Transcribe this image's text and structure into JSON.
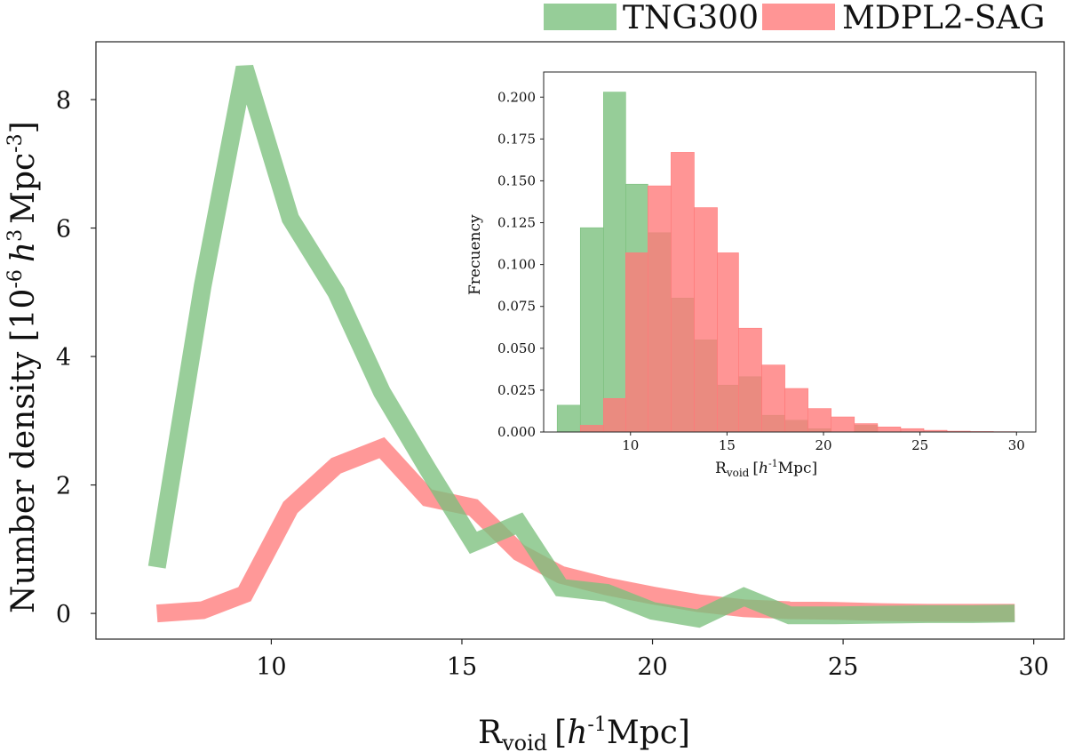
{
  "chart_data": {
    "main": {
      "type": "line",
      "xlabel": "R",
      "xlabel_sub": "void",
      "xlabel_unit_pre": "[",
      "xlabel_unit_h": "h",
      "xlabel_unit_exp": "-1",
      "xlabel_unit_post": "Mpc]",
      "ylabel_pre": "Number density [10",
      "ylabel_exp1": "-6",
      "ylabel_h": "h",
      "ylabel_exp2": "3",
      "ylabel_mid": "Mpc",
      "ylabel_exp3": "-3",
      "ylabel_post": "]",
      "xlim": [
        5.4,
        30.8
      ],
      "ylim": [
        -0.4,
        8.9
      ],
      "xticks": [
        "10",
        "15",
        "20",
        "25",
        "30"
      ],
      "xtick_values": [
        10,
        15,
        20,
        25,
        30
      ],
      "yticks": [
        "0",
        "2",
        "4",
        "6",
        "8"
      ],
      "ytick_values": [
        0,
        2,
        4,
        6,
        8
      ],
      "series": [
        {
          "name": "TNG300",
          "color": "#7cc07e",
          "x": [
            7.0,
            8.2,
            9.3,
            10.5,
            11.7,
            12.9,
            14.1,
            15.3,
            16.5,
            17.6,
            18.8,
            20.0,
            21.2,
            22.4,
            23.6,
            24.8,
            26.0,
            27.2,
            28.4,
            29.5
          ],
          "y": [
            0.72,
            5.1,
            8.5,
            6.15,
            5.0,
            3.45,
            2.25,
            1.1,
            1.4,
            0.4,
            0.32,
            0.04,
            -0.08,
            0.26,
            -0.03,
            -0.03,
            -0.02,
            -0.01,
            -0.01,
            0.0
          ]
        },
        {
          "name": "MDPL2-SAG",
          "color": "#ff7b7b",
          "x": [
            7.0,
            8.2,
            9.3,
            10.5,
            11.7,
            12.9,
            14.1,
            15.3,
            16.5,
            17.6,
            18.8,
            20.0,
            21.2,
            22.4,
            23.6,
            24.8,
            26.0,
            27.2,
            28.4,
            29.5
          ],
          "y": [
            0.0,
            0.05,
            0.3,
            1.65,
            2.3,
            2.58,
            1.8,
            1.65,
            0.95,
            0.6,
            0.42,
            0.28,
            0.16,
            0.08,
            0.05,
            0.04,
            0.02,
            0.01,
            0.01,
            0.01
          ]
        }
      ]
    },
    "inset": {
      "type": "bar",
      "ylabel": "Frecuency",
      "xlabel": "R",
      "xlabel_sub": "void",
      "xlabel_unit_pre": "[",
      "xlabel_unit_h": "h",
      "xlabel_unit_exp": "-1",
      "xlabel_unit_post": "Mpc]",
      "xlim": [
        5.5,
        31.0
      ],
      "ylim": [
        0.0,
        0.215
      ],
      "xticks": [
        "10",
        "15",
        "20",
        "25",
        "30"
      ],
      "xtick_values": [
        10,
        15,
        20,
        25,
        30
      ],
      "yticks": [
        "0.000",
        "0.025",
        "0.050",
        "0.075",
        "0.100",
        "0.125",
        "0.150",
        "0.175",
        "0.200"
      ],
      "ytick_values": [
        0.0,
        0.025,
        0.05,
        0.075,
        0.1,
        0.125,
        0.15,
        0.175,
        0.2
      ],
      "bins": [
        6.2,
        7.4,
        8.6,
        9.75,
        10.9,
        12.1,
        13.3,
        14.5,
        15.6,
        16.8,
        18.0,
        19.2,
        20.4,
        21.6,
        22.8,
        24.0,
        25.2,
        26.4,
        27.6,
        28.8,
        30.0
      ],
      "series": [
        {
          "name": "TNG300",
          "color": "#7cc07e",
          "values": [
            0.016,
            0.122,
            0.203,
            0.148,
            0.119,
            0.08,
            0.055,
            0.028,
            0.033,
            0.01,
            0.007,
            0.002,
            0.0,
            0.004,
            0.0,
            0.0,
            0.0,
            0.0,
            0.0,
            0.0
          ]
        },
        {
          "name": "MDPL2-SAG",
          "color": "#ff7b7b",
          "values": [
            0.0,
            0.004,
            0.02,
            0.107,
            0.147,
            0.167,
            0.134,
            0.107,
            0.062,
            0.04,
            0.026,
            0.014,
            0.009,
            0.005,
            0.003,
            0.002,
            0.001,
            0.0005,
            0.0003,
            0.0002
          ]
        }
      ]
    },
    "legend": {
      "position": "top-right",
      "entries": [
        {
          "label": "TNG300",
          "color": "#7cc07e"
        },
        {
          "label": "MDPL2-SAG",
          "color": "#ff7b7b"
        }
      ]
    }
  }
}
